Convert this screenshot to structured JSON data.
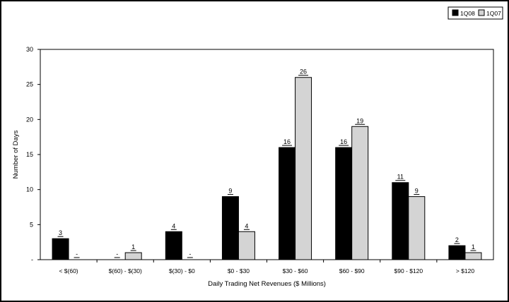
{
  "chart_data": {
    "type": "bar",
    "categories": [
      "< $(60)",
      "$(60) - $(30)",
      "$(30) - $0",
      "$0 - $30",
      "$30 - $60",
      "$60 - $90",
      "$90 - $120",
      "> $120"
    ],
    "series": [
      {
        "name": "1Q08",
        "color": "#000000",
        "values": [
          3,
          0,
          4,
          9,
          16,
          16,
          11,
          2
        ],
        "labels": [
          "3",
          "-",
          "4",
          "9",
          "16",
          "16",
          "11",
          "2"
        ]
      },
      {
        "name": "1Q07",
        "color": "#d4d4d4",
        "values": [
          0,
          1,
          0,
          4,
          26,
          19,
          9,
          1
        ],
        "labels": [
          "-",
          "1",
          "-",
          "4",
          "26",
          "19",
          "9",
          "1"
        ]
      }
    ],
    "xlabel": "Daily Trading Net Revenues ($ Millions)",
    "ylabel": "Number of Days",
    "ylim": [
      0,
      30
    ],
    "yticks": [
      0,
      5,
      10,
      15,
      20,
      25,
      30
    ],
    "ytick_labels": [
      "-",
      "5",
      "10",
      "15",
      "20",
      "25",
      "30"
    ],
    "grid": false,
    "legend_position": "top-right"
  }
}
